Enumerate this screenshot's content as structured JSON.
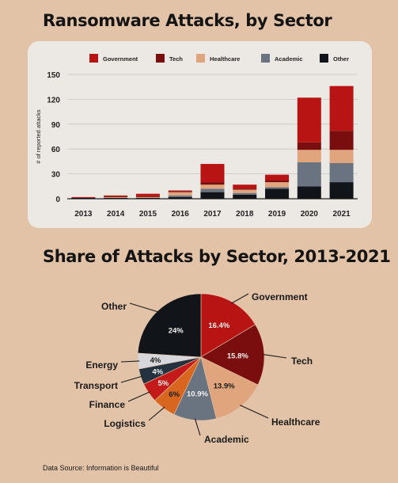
{
  "titles": {
    "bar": "Ransomware Attacks, by Sector",
    "pie": "Share of Attacks by Sector, 2013-2021"
  },
  "source": "Data Source: Information is Beautiful",
  "colors": {
    "Government": "#b81414",
    "Tech": "#7a0e0e",
    "Healthcare": "#e0a57c",
    "Academic": "#6a7480",
    "Other": "#111418",
    "Energy": "#d7d7db",
    "Transport": "#243240",
    "Finance": "#c41a1a",
    "Logistics": "#d9661e"
  },
  "chart_data": [
    {
      "type": "bar",
      "stacked": true,
      "title": "Ransomware Attacks, by Sector",
      "ylabel": "# of reported attacks",
      "xlabel": "",
      "ylim": [
        0,
        150
      ],
      "yticks": [
        0,
        30,
        60,
        90,
        120,
        150
      ],
      "grid": true,
      "legend": "top",
      "categories": [
        "2013",
        "2014",
        "2015",
        "2016",
        "2017",
        "2018",
        "2019",
        "2020",
        "2021"
      ],
      "series": [
        {
          "name": "Other",
          "values": [
            1,
            1,
            1,
            2,
            8,
            5,
            12,
            15,
            20
          ]
        },
        {
          "name": "Academic",
          "values": [
            0,
            0,
            0,
            2,
            4,
            2,
            2,
            29,
            23
          ]
        },
        {
          "name": "Healthcare",
          "values": [
            0,
            1,
            1,
            4,
            5,
            4,
            6,
            15,
            16
          ]
        },
        {
          "name": "Tech",
          "values": [
            0,
            1,
            1,
            1,
            3,
            1,
            2,
            9,
            23
          ]
        },
        {
          "name": "Government",
          "values": [
            1,
            1,
            3,
            1,
            22,
            5,
            7,
            54,
            54
          ]
        }
      ],
      "legend_order": [
        "Government",
        "Tech",
        "Healthcare",
        "Academic",
        "Other"
      ]
    },
    {
      "type": "pie",
      "title": "Share of Attacks by Sector, 2013-2021",
      "slices": [
        {
          "name": "Government",
          "value": 16.4,
          "pct": "16.4%"
        },
        {
          "name": "Tech",
          "value": 15.8,
          "pct": "15.8%"
        },
        {
          "name": "Healthcare",
          "value": 13.9,
          "pct": "13.9%"
        },
        {
          "name": "Academic",
          "value": 10.9,
          "pct": "10.9%"
        },
        {
          "name": "Logistics",
          "value": 6,
          "pct": "6%"
        },
        {
          "name": "Finance",
          "value": 5,
          "pct": "5%"
        },
        {
          "name": "Transport",
          "value": 4,
          "pct": "4%"
        },
        {
          "name": "Energy",
          "value": 4,
          "pct": "4%"
        },
        {
          "name": "Other",
          "value": 24,
          "pct": "24%"
        }
      ]
    }
  ]
}
